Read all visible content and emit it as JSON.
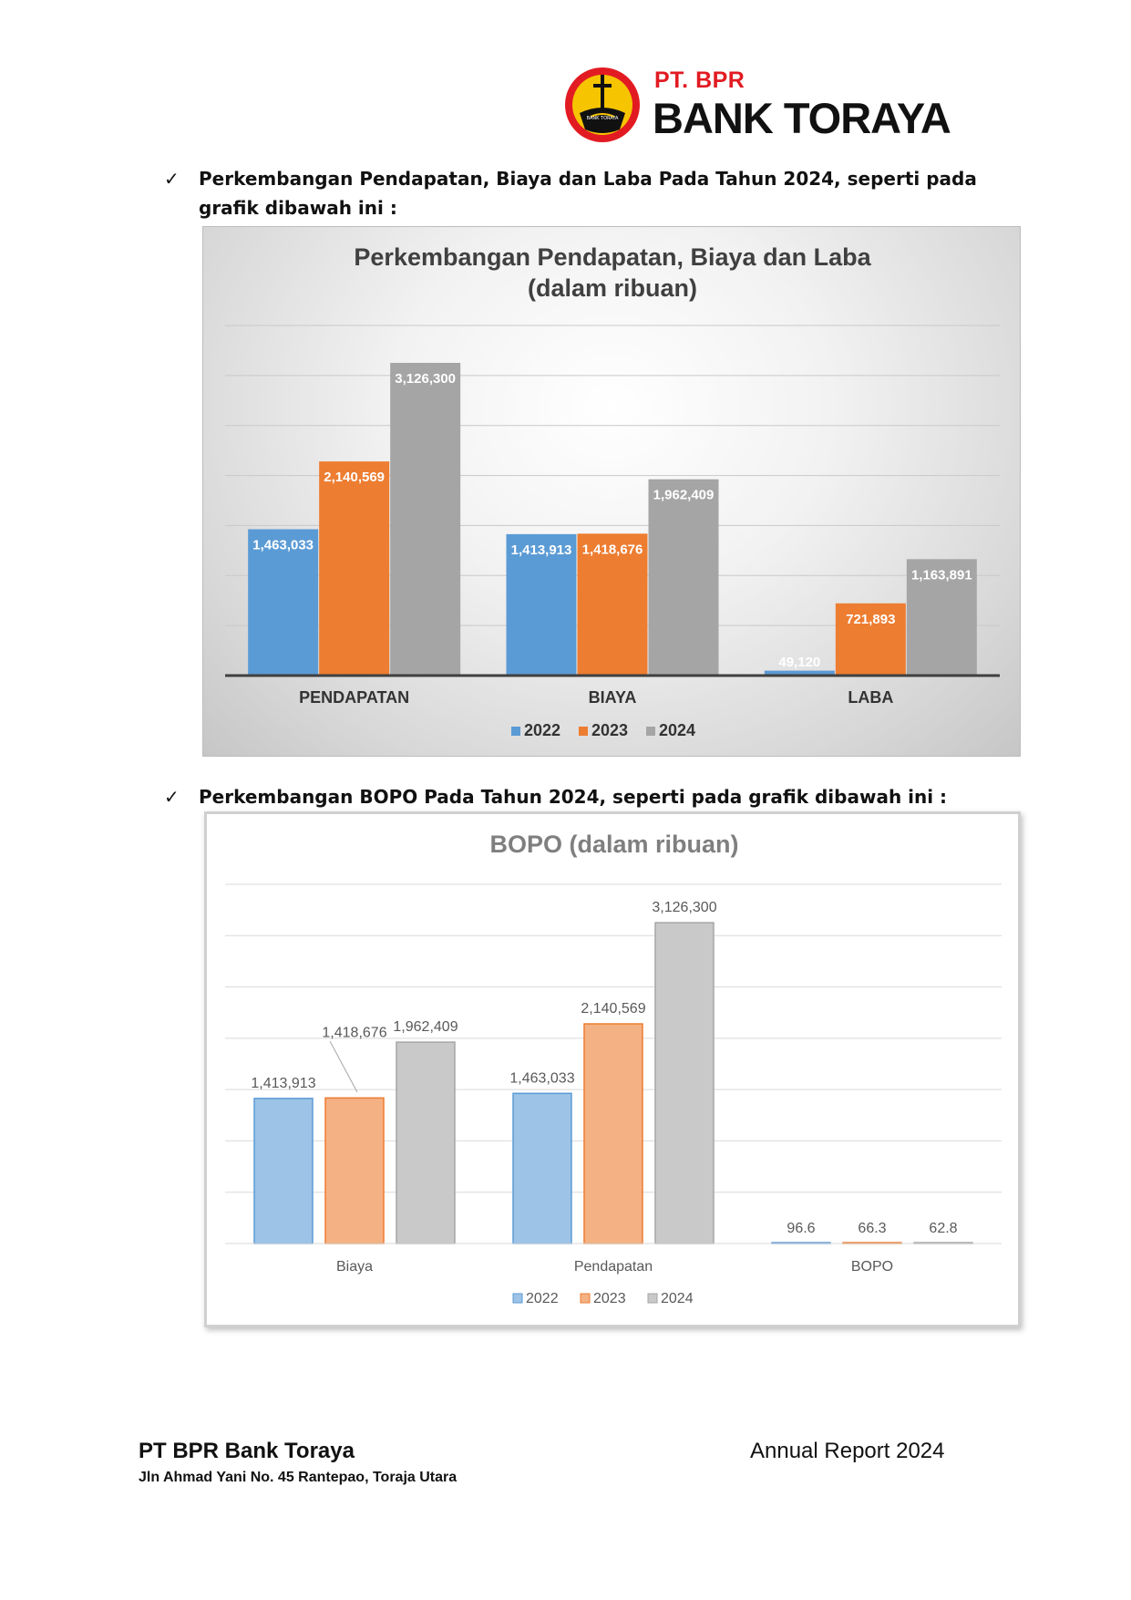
{
  "header": {
    "logo_prefix": "PT. BPR",
    "logo_name": "BANK TORAYA",
    "emblem_text": "BANK TORAYA",
    "colors": {
      "red": "#e21b22",
      "yellow": "#f6c400",
      "black": "#111111"
    }
  },
  "bullets": [
    {
      "icon": "check-icon",
      "text": "Perkembangan Pendapatan, Biaya dan Laba Pada Tahun 2024, seperti pada grafik dibawah ini :"
    },
    {
      "icon": "check-icon",
      "text": "Perkembangan BOPO Pada Tahun 2024, seperti pada grafik dibawah ini :"
    }
  ],
  "chart_data": [
    {
      "type": "bar",
      "title": "Perkembangan Pendapatan, Biaya dan Laba",
      "subtitle": "(dalam ribuan)",
      "categories": [
        "PENDAPATAN",
        "BIAYA",
        "LABA"
      ],
      "series": [
        {
          "name": "2022",
          "color": "#5b9bd5",
          "values": [
            1463033,
            1413913,
            49120
          ],
          "labels": [
            "1,463,033",
            "1,413,913",
            "49,120"
          ]
        },
        {
          "name": "2023",
          "color": "#ed7d31",
          "values": [
            2140569,
            1418676,
            721893
          ],
          "labels": [
            "2,140,569",
            "1,418,676",
            "721,893"
          ]
        },
        {
          "name": "2024",
          "color": "#a5a5a5",
          "values": [
            3126300,
            1962409,
            1163891
          ],
          "labels": [
            "3,126,300",
            "1,962,409",
            "1,163,891"
          ]
        }
      ],
      "ylim": [
        0,
        3500000
      ],
      "grid": true,
      "legend": "bottom",
      "xlabel": "",
      "ylabel": ""
    },
    {
      "type": "bar",
      "title": "BOPO (dalam ribuan)",
      "categories": [
        "Biaya",
        "Pendapatan",
        "BOPO"
      ],
      "series": [
        {
          "name": "2022",
          "color": "#9dc3e6",
          "values": [
            1413913,
            1463033,
            96.6
          ],
          "labels": [
            "1,413,913",
            "1,463,033",
            "96.6"
          ]
        },
        {
          "name": "2023",
          "color": "#f4b183",
          "values": [
            1418676,
            2140569,
            66.3
          ],
          "labels": [
            "1,418,676",
            "2,140,569",
            "66.3"
          ]
        },
        {
          "name": "2024",
          "color": "#c9c9c9",
          "values": [
            1962409,
            3126300,
            62.8
          ],
          "labels": [
            "1,962,409",
            "3,126,300",
            "62.8"
          ]
        }
      ],
      "ylim": [
        0,
        3500000
      ],
      "grid": true,
      "legend": "bottom",
      "xlabel": "",
      "ylabel": ""
    }
  ],
  "footer": {
    "company": "PT BPR Bank Toraya",
    "address": "Jln Ahmad Yani No. 45 Rantepao, Toraja Utara",
    "report": "Annual Report 2024"
  }
}
